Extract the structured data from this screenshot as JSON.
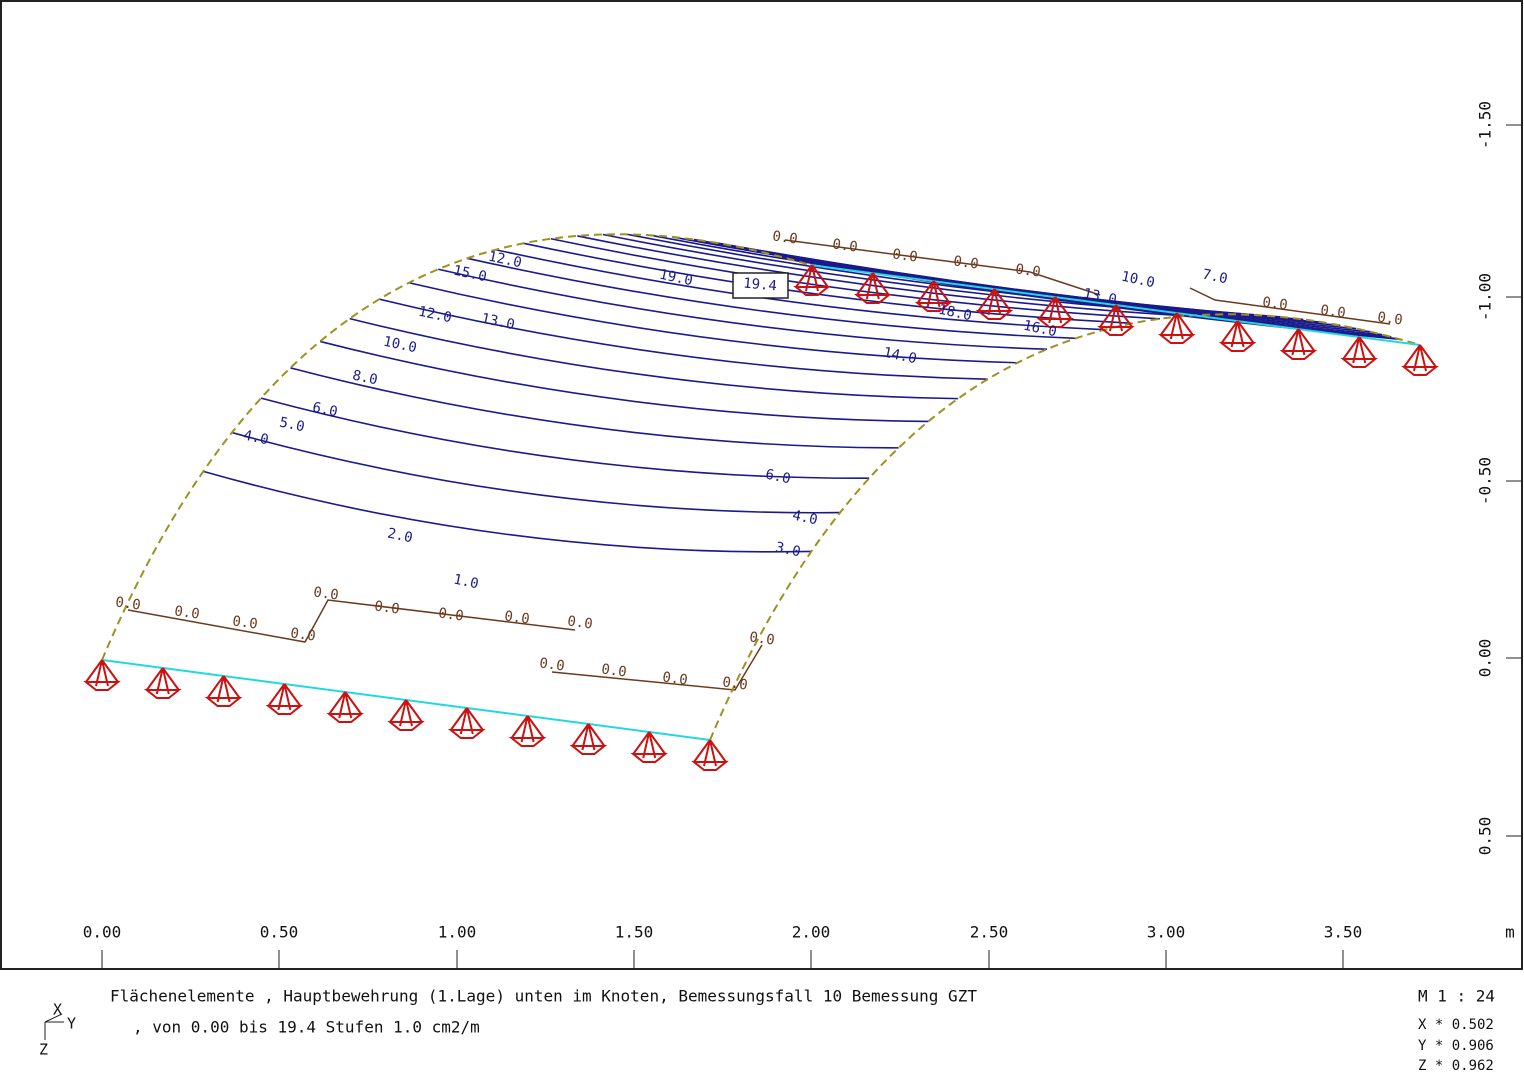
{
  "x_axis": {
    "ticks": [
      "0.00",
      "0.50",
      "1.00",
      "1.50",
      "2.00",
      "2.50",
      "3.00",
      "3.50"
    ],
    "unit": "m"
  },
  "y_axis": {
    "ticks": [
      "-1.50",
      "-1.00",
      "-0.50",
      "0.00",
      "0.50"
    ]
  },
  "contour_labels": [
    "12.0",
    "15.0",
    "12.0",
    "13.0",
    "10.0",
    "8.0",
    "6.0",
    "5.0",
    "4.0",
    "19.0",
    "18.0",
    "16.0",
    "14.0",
    "13.0",
    "10.0",
    "7.0",
    "6.0",
    "4.0",
    "3.0",
    "2.0",
    "1.0"
  ],
  "max_label": "19.4",
  "zero_labels": [
    "0.0",
    "0.0",
    "0.0",
    "0.0",
    "0.0",
    "0.0",
    "0.0",
    "0.0",
    "0.0",
    "0.0",
    "0.0",
    "0.0",
    "0.0",
    "0.0",
    "0.0",
    "0.0",
    "0.0",
    "0.0",
    "0.0",
    "0.0",
    "0.0",
    "0.0"
  ],
  "caption": {
    "line1": "Flächenelemente , Hauptbewehrung (1.Lage) unten im Knoten, Bemessungsfall 10 Bemessung GZT",
    "line2": ", von 0.00 bis 19.4 Stufen 1.0 cm2/m"
  },
  "scale": "M 1 : 24",
  "factors": [
    "X * 0.502",
    "Y * 0.906",
    "Z * 0.962"
  ],
  "axis_triad": [
    "X",
    "Y",
    "Z"
  ]
}
